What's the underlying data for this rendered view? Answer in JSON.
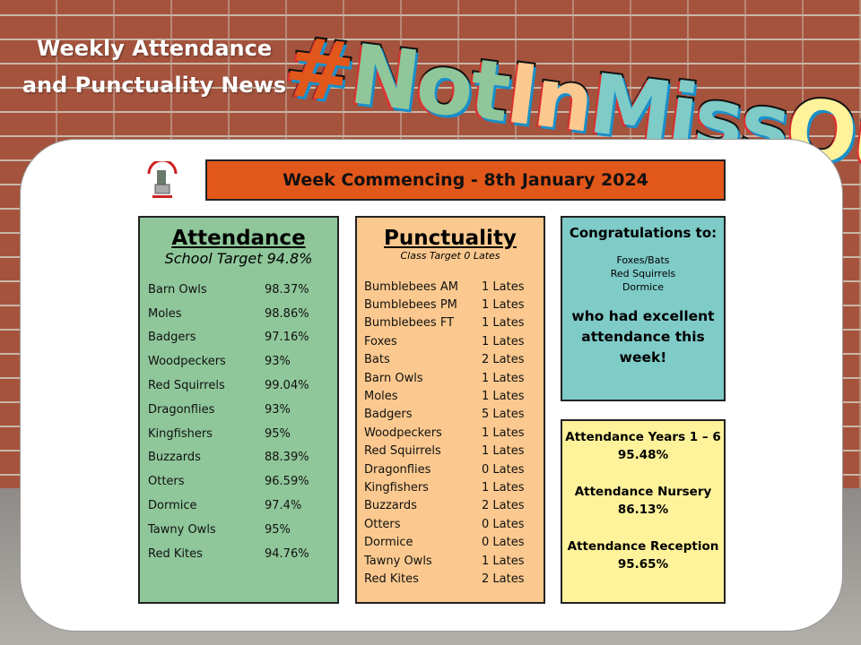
{
  "header": {
    "title_line1": "Weekly Attendance",
    "title_line2": "and Punctuality News",
    "hashtag": [
      "#",
      "Not",
      "In",
      "Miss",
      "Out"
    ],
    "hashtag_colors": [
      "#e2571a",
      "#8fc79a",
      "#fbc98f",
      "#7ecbc8",
      "#fef29a"
    ]
  },
  "banner": "Week Commencing - 8th January 2024",
  "attendance": {
    "title": "Attendance",
    "target": "School Target 94.8%",
    "rows": [
      [
        "Barn Owls",
        "98.37%"
      ],
      [
        "Moles",
        "98.86%"
      ],
      [
        "Badgers",
        "97.16%"
      ],
      [
        "Woodpeckers",
        "93%"
      ],
      [
        "Red Squirrels",
        "99.04%"
      ],
      [
        "Dragonflies",
        "93%"
      ],
      [
        "Kingfishers",
        "95%"
      ],
      [
        "Buzzards",
        "88.39%"
      ],
      [
        "Otters",
        "96.59%"
      ],
      [
        "Dormice",
        "97.4%"
      ],
      [
        "Tawny Owls",
        "95%"
      ],
      [
        "Red Kites",
        "94.76%"
      ]
    ]
  },
  "punctuality": {
    "title": "Punctuality",
    "target": "Class Target 0 Lates",
    "rows": [
      [
        "Bumblebees AM",
        "1 Lates"
      ],
      [
        "Bumblebees PM",
        "1 Lates"
      ],
      [
        "Bumblebees FT",
        "1 Lates"
      ],
      [
        "Foxes",
        "1 Lates"
      ],
      [
        "Bats",
        "2 Lates"
      ],
      [
        "Barn Owls",
        "1 Lates"
      ],
      [
        "Moles",
        "1 Lates"
      ],
      [
        "Badgers",
        "5 Lates"
      ],
      [
        "Woodpeckers",
        "1 Lates"
      ],
      [
        "Red Squirrels",
        "1 Lates"
      ],
      [
        "Dragonflies",
        "0 Lates"
      ],
      [
        "Kingfishers",
        "1 Lates"
      ],
      [
        "Buzzards",
        "2 Lates"
      ],
      [
        "Otters",
        "0 Lates"
      ],
      [
        "Dormice",
        "0 Lates"
      ],
      [
        "Tawny Owls",
        "1 Lates"
      ],
      [
        "Red Kites",
        "2 Lates"
      ]
    ]
  },
  "congrats": {
    "title": "Congratulations to:",
    "names": [
      "Foxes/Bats",
      "Red Squirrels",
      "Dormice"
    ],
    "message": "who had excellent attendance this week!"
  },
  "summary": [
    {
      "label": "Attendance Years 1 – 6",
      "value": "95.48%"
    },
    {
      "label": "Attendance Nursery",
      "value": "86.13%"
    },
    {
      "label": "Attendance Reception",
      "value": "95.65%"
    }
  ]
}
